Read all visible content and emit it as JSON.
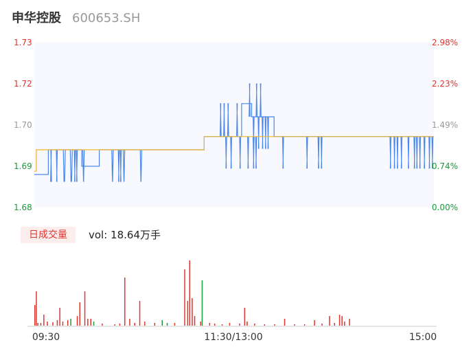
{
  "header": {
    "name": "申华控股",
    "code": "600653.SH"
  },
  "chart_data": {
    "type": "line",
    "price_axis": {
      "ticks": [
        "1.73",
        "1.72",
        "1.70",
        "1.69",
        "1.68"
      ],
      "min": 1.68,
      "max": 1.73
    },
    "pct_axis": {
      "ticks": [
        "2.98%",
        "2.23%",
        "1.49%",
        "0.74%",
        "0.00%"
      ]
    },
    "axis_colors": {
      "up": "#e0342f",
      "flat": "#999999",
      "down": "#1a9a3a"
    },
    "series": [
      {
        "color": "#4a86e8",
        "segments": [
          {
            "from": 0,
            "to": 28,
            "price": 1.69
          },
          {
            "from": 28,
            "to": 95,
            "price": 1.6975,
            "dips": [
              [
                33,
                34
              ],
              [
                44,
                46
              ],
              [
                58,
                62
              ],
              [
                72,
                76
              ],
              [
                80,
                82
              ],
              [
                84,
                86
              ],
              [
                97,
                100
              ]
            ]
          },
          {
            "from": 95,
            "to": 130,
            "price": 1.6925
          },
          {
            "from": 130,
            "to": 340,
            "price": 1.6975,
            "dips": [
              [
                155,
                158
              ],
              [
                168,
                170
              ],
              [
                172,
                174
              ],
              [
                178,
                181
              ],
              [
                212,
                215
              ]
            ]
          },
          {
            "from": 340,
            "to": 405,
            "price": 1.7015,
            "dips": [
              [
                383,
                385
              ],
              [
                393,
                395
              ],
              [
                411,
                413
              ],
              [
                427,
                429
              ],
              [
                438,
                440
              ],
              [
                443,
                445
              ]
            ],
            "ups": [
              [
                372,
                374
              ],
              [
                379,
                381
              ],
              [
                387,
                389
              ],
              [
                405,
                407
              ]
            ]
          },
          {
            "from": 405,
            "to": 415,
            "price": 1.7015
          },
          {
            "from": 415,
            "to": 435,
            "price": 1.7115
          },
          {
            "from": 435,
            "to": 480,
            "price": 1.7075,
            "dips": [
              [
                438,
                440
              ],
              [
                448,
                450
              ],
              [
                456,
                458
              ],
              [
                462,
                464
              ],
              [
                467,
                469
              ]
            ],
            "ups": [
              [
                430,
                432
              ],
              [
                444,
                446
              ],
              [
                452,
                454
              ]
            ]
          },
          {
            "from": 480,
            "to": 715,
            "price": 1.7015,
            "dips": [
              [
                497,
                499
              ],
              [
                545,
                547
              ],
              [
                568,
                570
              ],
              [
                574,
                576
              ]
            ]
          },
          {
            "from": 715,
            "to": 800,
            "price": 1.7015,
            "dips": [
              [
                712,
                714
              ],
              [
                720,
                722
              ],
              [
                726,
                728
              ],
              [
                734,
                736
              ],
              [
                748,
                750
              ],
              [
                760,
                762
              ],
              [
                765,
                767
              ],
              [
                771,
                773
              ],
              [
                780,
                782
              ],
              [
                790,
                792
              ],
              [
                796,
                798
              ]
            ]
          }
        ]
      },
      {
        "color": "#f0b429",
        "segments": [
          {
            "from": 0,
            "to": 4,
            "price": 1.691
          },
          {
            "from": 4,
            "to": 340,
            "price": 1.6975
          },
          {
            "from": 340,
            "to": 800,
            "price": 1.7015
          }
        ]
      }
    ],
    "time_labels": [
      "09:30",
      "11:30/13:00",
      "15:00"
    ],
    "volume": {
      "tag": "日成交量",
      "summary": "vol: 18.64万手",
      "bars": [
        {
          "t": 0,
          "v": 30,
          "d": "up"
        },
        {
          "t": 3,
          "v": 50,
          "d": "up"
        },
        {
          "t": 6,
          "v": 4,
          "d": "up"
        },
        {
          "t": 12,
          "v": 4,
          "d": "up"
        },
        {
          "t": 18,
          "v": 16,
          "d": "up"
        },
        {
          "t": 25,
          "v": 6,
          "d": "up"
        },
        {
          "t": 36,
          "v": 5,
          "d": "up"
        },
        {
          "t": 45,
          "v": 8,
          "d": "up"
        },
        {
          "t": 50,
          "v": 26,
          "d": "up"
        },
        {
          "t": 56,
          "v": 6,
          "d": "up"
        },
        {
          "t": 66,
          "v": 8,
          "d": "up"
        },
        {
          "t": 72,
          "v": 10,
          "d": "down"
        },
        {
          "t": 85,
          "v": 14,
          "d": "up"
        },
        {
          "t": 90,
          "v": 34,
          "d": "up"
        },
        {
          "t": 100,
          "v": 50,
          "d": "up"
        },
        {
          "t": 106,
          "v": 10,
          "d": "up"
        },
        {
          "t": 112,
          "v": 10,
          "d": "up"
        },
        {
          "t": 118,
          "v": 6,
          "d": "down"
        },
        {
          "t": 135,
          "v": 3,
          "d": "up"
        },
        {
          "t": 160,
          "v": 2,
          "d": "up"
        },
        {
          "t": 170,
          "v": 3,
          "d": "up"
        },
        {
          "t": 180,
          "v": 70,
          "d": "up"
        },
        {
          "t": 190,
          "v": 10,
          "d": "up"
        },
        {
          "t": 200,
          "v": 4,
          "d": "up"
        },
        {
          "t": 210,
          "v": 36,
          "d": "up"
        },
        {
          "t": 220,
          "v": 6,
          "d": "up"
        },
        {
          "t": 240,
          "v": 4,
          "d": "up"
        },
        {
          "t": 255,
          "v": 8,
          "d": "down"
        },
        {
          "t": 265,
          "v": 4,
          "d": "down"
        },
        {
          "t": 280,
          "v": 4,
          "d": "up"
        },
        {
          "t": 300,
          "v": 82,
          "d": "up"
        },
        {
          "t": 306,
          "v": 36,
          "d": "up"
        },
        {
          "t": 310,
          "v": 95,
          "d": "up"
        },
        {
          "t": 315,
          "v": 40,
          "d": "up"
        },
        {
          "t": 320,
          "v": 14,
          "d": "up"
        },
        {
          "t": 332,
          "v": 6,
          "d": "up"
        },
        {
          "t": 335,
          "v": 66,
          "d": "down"
        },
        {
          "t": 350,
          "v": 4,
          "d": "up"
        },
        {
          "t": 360,
          "v": 3,
          "d": "up"
        },
        {
          "t": 375,
          "v": 2,
          "d": "up"
        },
        {
          "t": 390,
          "v": 4,
          "d": "up"
        },
        {
          "t": 410,
          "v": 3,
          "d": "up"
        },
        {
          "t": 420,
          "v": 26,
          "d": "up"
        },
        {
          "t": 425,
          "v": 6,
          "d": "up"
        },
        {
          "t": 440,
          "v": 3,
          "d": "up"
        },
        {
          "t": 460,
          "v": 2,
          "d": "up"
        },
        {
          "t": 480,
          "v": 2,
          "d": "up"
        },
        {
          "t": 500,
          "v": 10,
          "d": "up"
        },
        {
          "t": 520,
          "v": 2,
          "d": "up"
        },
        {
          "t": 540,
          "v": 2,
          "d": "up"
        },
        {
          "t": 560,
          "v": 8,
          "d": "up"
        },
        {
          "t": 575,
          "v": 3,
          "d": "up"
        },
        {
          "t": 590,
          "v": 14,
          "d": "up"
        },
        {
          "t": 600,
          "v": 4,
          "d": "up"
        },
        {
          "t": 610,
          "v": 16,
          "d": "up"
        },
        {
          "t": 615,
          "v": 14,
          "d": "up"
        },
        {
          "t": 620,
          "v": 6,
          "d": "up"
        },
        {
          "t": 630,
          "v": 10,
          "d": "up"
        }
      ]
    }
  }
}
